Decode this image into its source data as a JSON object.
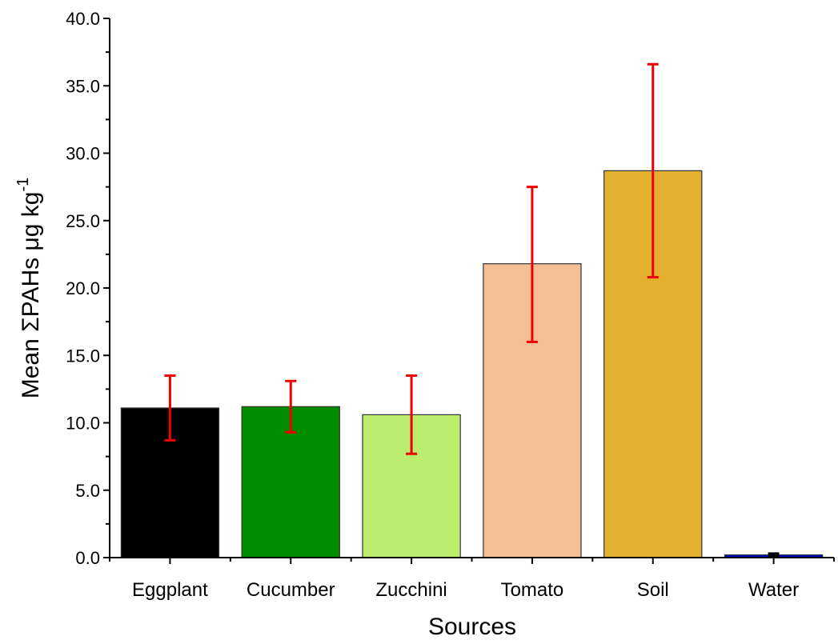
{
  "chart_data": {
    "type": "bar",
    "xlabel": "Sources",
    "ylabel_main": "Mean ΣPAHs μg kg",
    "ylabel_superscript": "-1",
    "categories": [
      "Eggplant",
      "Cucumber",
      "Zucchini",
      "Tomato",
      "Soil",
      "Water"
    ],
    "values": [
      11.1,
      11.2,
      10.6,
      21.8,
      28.7,
      0.2
    ],
    "error_low": [
      8.7,
      9.3,
      7.7,
      16.0,
      20.8,
      0.1
    ],
    "error_high": [
      13.5,
      13.1,
      13.5,
      27.5,
      36.6,
      0.3
    ],
    "bar_colors": [
      "#000000",
      "#008c00",
      "#bcec6e",
      "#f5bf95",
      "#e3b030",
      "#0000cc"
    ],
    "error_colors": [
      "#ee0000",
      "#ee0000",
      "#ee0000",
      "#ee0000",
      "#ee0000",
      "#000000"
    ],
    "ylim": [
      0,
      40
    ],
    "yticks": [
      "0.0",
      "5.0",
      "10.0",
      "15.0",
      "20.0",
      "25.0",
      "30.0",
      "35.0",
      "40.0"
    ],
    "grid": false,
    "legend": "none"
  }
}
